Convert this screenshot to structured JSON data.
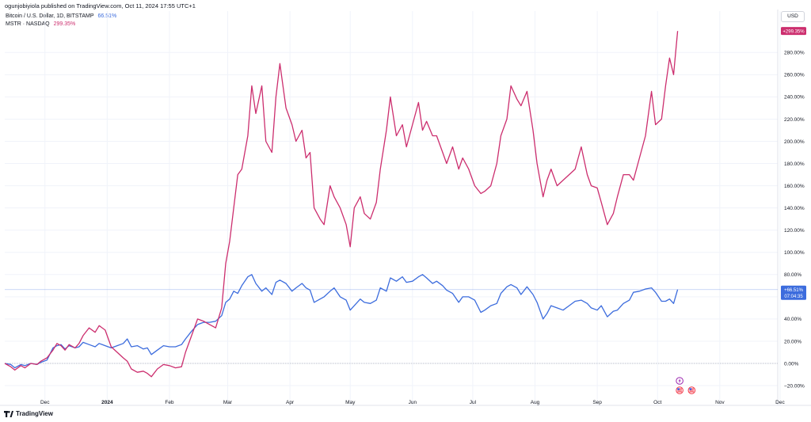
{
  "publisher": "ogunjobiyiola published on TradingView.com, Oct 11, 2024 17:55 UTC+1",
  "currency": "USD",
  "brand": "TradingView",
  "icons": {
    "event": "lightning-icon",
    "flag": "us-flag-icon",
    "logo": "tradingview-logo-icon"
  },
  "colors": {
    "btc": "#3c6cdd",
    "mstr": "#cc2e6e",
    "zero_line": "#b2b5be"
  },
  "chart_data": {
    "type": "line",
    "y_unit": "%",
    "ylim": [
      -28,
      315
    ],
    "y_ticks": [
      -20,
      0,
      20,
      40,
      60,
      80,
      100,
      120,
      140,
      160,
      180,
      200,
      220,
      240,
      260,
      280
    ],
    "y_tick_labels": [
      "−20.00%",
      "0.00%",
      "20.00%",
      "40.00%",
      "60.00%",
      "80.00%",
      "100.00%",
      "120.00%",
      "140.00%",
      "160.00%",
      "180.00%",
      "200.00%",
      "220.00%",
      "240.00%",
      "260.00%",
      "280.00%"
    ],
    "x_ticks": [
      {
        "label": "Dec",
        "date": "2023-12-01"
      },
      {
        "label": "2024",
        "date": "2024-01-01"
      },
      {
        "label": "Feb",
        "date": "2024-02-01"
      },
      {
        "label": "Mar",
        "date": "2024-03-01"
      },
      {
        "label": "Apr",
        "date": "2024-04-01"
      },
      {
        "label": "May",
        "date": "2024-05-01"
      },
      {
        "label": "Jun",
        "date": "2024-06-01"
      },
      {
        "label": "Jul",
        "date": "2024-07-01"
      },
      {
        "label": "Aug",
        "date": "2024-08-01"
      },
      {
        "label": "Sep",
        "date": "2024-09-01"
      },
      {
        "label": "Oct",
        "date": "2024-10-01"
      },
      {
        "label": "Nov",
        "date": "2024-11-01"
      },
      {
        "label": "Dec",
        "date": "2024-12-01"
      }
    ],
    "x_range": [
      "2023-11-11",
      "2024-12-03"
    ],
    "events": {
      "lightning": "2024-10-12",
      "flags": [
        "2024-10-12",
        "2024-10-18"
      ]
    },
    "series": [
      {
        "name": "Bitcoin / U.S. Dollar, 1D, BITSTAMP",
        "legend_value": "66.51%",
        "last_label": "+66.51%",
        "countdown": "07:04:35",
        "color": "#3c6cdd",
        "points": [
          [
            "2023-11-11",
            0
          ],
          [
            "2023-11-14",
            -1
          ],
          [
            "2023-11-16",
            -4
          ],
          [
            "2023-11-19",
            -1
          ],
          [
            "2023-11-21",
            -2
          ],
          [
            "2023-11-24",
            0
          ],
          [
            "2023-11-27",
            -1
          ],
          [
            "2023-11-29",
            1
          ],
          [
            "2023-12-02",
            3
          ],
          [
            "2023-12-05",
            14
          ],
          [
            "2023-12-07",
            16
          ],
          [
            "2023-12-09",
            17
          ],
          [
            "2023-12-11",
            13
          ],
          [
            "2023-12-13",
            16
          ],
          [
            "2023-12-16",
            14
          ],
          [
            "2023-12-18",
            15
          ],
          [
            "2023-12-20",
            19
          ],
          [
            "2023-12-23",
            17
          ],
          [
            "2023-12-26",
            15
          ],
          [
            "2023-12-28",
            18
          ],
          [
            "2023-12-31",
            16
          ],
          [
            "2024-01-03",
            14
          ],
          [
            "2024-01-06",
            16
          ],
          [
            "2024-01-09",
            18
          ],
          [
            "2024-01-11",
            22
          ],
          [
            "2024-01-13",
            15
          ],
          [
            "2024-01-16",
            16
          ],
          [
            "2024-01-19",
            13
          ],
          [
            "2024-01-21",
            14
          ],
          [
            "2024-01-23",
            8
          ],
          [
            "2024-01-26",
            12
          ],
          [
            "2024-01-29",
            16
          ],
          [
            "2024-02-01",
            15
          ],
          [
            "2024-02-04",
            15
          ],
          [
            "2024-02-07",
            17
          ],
          [
            "2024-02-09",
            22
          ],
          [
            "2024-02-12",
            29
          ],
          [
            "2024-02-15",
            35
          ],
          [
            "2024-02-18",
            37
          ],
          [
            "2024-02-21",
            37
          ],
          [
            "2024-02-24",
            38
          ],
          [
            "2024-02-27",
            43
          ],
          [
            "2024-02-29",
            55
          ],
          [
            "2024-03-02",
            58
          ],
          [
            "2024-03-04",
            65
          ],
          [
            "2024-03-06",
            63
          ],
          [
            "2024-03-08",
            70
          ],
          [
            "2024-03-11",
            78
          ],
          [
            "2024-03-13",
            80
          ],
          [
            "2024-03-15",
            72
          ],
          [
            "2024-03-18",
            65
          ],
          [
            "2024-03-20",
            68
          ],
          [
            "2024-03-23",
            62
          ],
          [
            "2024-03-25",
            73
          ],
          [
            "2024-03-27",
            75
          ],
          [
            "2024-03-30",
            72
          ],
          [
            "2024-04-02",
            65
          ],
          [
            "2024-04-04",
            68
          ],
          [
            "2024-04-07",
            72
          ],
          [
            "2024-04-09",
            68
          ],
          [
            "2024-04-11",
            66
          ],
          [
            "2024-04-13",
            55
          ],
          [
            "2024-04-16",
            58
          ],
          [
            "2024-04-18",
            60
          ],
          [
            "2024-04-21",
            65
          ],
          [
            "2024-04-23",
            68
          ],
          [
            "2024-04-26",
            60
          ],
          [
            "2024-04-29",
            57
          ],
          [
            "2024-05-01",
            48
          ],
          [
            "2024-05-03",
            52
          ],
          [
            "2024-05-06",
            58
          ],
          [
            "2024-05-08",
            55
          ],
          [
            "2024-05-11",
            54
          ],
          [
            "2024-05-14",
            57
          ],
          [
            "2024-05-16",
            68
          ],
          [
            "2024-05-19",
            65
          ],
          [
            "2024-05-21",
            77
          ],
          [
            "2024-05-24",
            74
          ],
          [
            "2024-05-27",
            78
          ],
          [
            "2024-05-29",
            73
          ],
          [
            "2024-06-01",
            74
          ],
          [
            "2024-06-04",
            78
          ],
          [
            "2024-06-06",
            80
          ],
          [
            "2024-06-08",
            77
          ],
          [
            "2024-06-11",
            72
          ],
          [
            "2024-06-13",
            74
          ],
          [
            "2024-06-16",
            70
          ],
          [
            "2024-06-18",
            66
          ],
          [
            "2024-06-21",
            63
          ],
          [
            "2024-06-24",
            55
          ],
          [
            "2024-06-26",
            60
          ],
          [
            "2024-06-29",
            60
          ],
          [
            "2024-07-02",
            57
          ],
          [
            "2024-07-05",
            46
          ],
          [
            "2024-07-07",
            48
          ],
          [
            "2024-07-10",
            52
          ],
          [
            "2024-07-13",
            54
          ],
          [
            "2024-07-15",
            63
          ],
          [
            "2024-07-18",
            69
          ],
          [
            "2024-07-20",
            71
          ],
          [
            "2024-07-23",
            68
          ],
          [
            "2024-07-25",
            62
          ],
          [
            "2024-07-28",
            69
          ],
          [
            "2024-07-31",
            62
          ],
          [
            "2024-08-02",
            55
          ],
          [
            "2024-08-05",
            40
          ],
          [
            "2024-08-07",
            45
          ],
          [
            "2024-08-09",
            52
          ],
          [
            "2024-08-12",
            50
          ],
          [
            "2024-08-15",
            48
          ],
          [
            "2024-08-18",
            52
          ],
          [
            "2024-08-21",
            56
          ],
          [
            "2024-08-24",
            57
          ],
          [
            "2024-08-27",
            54
          ],
          [
            "2024-08-29",
            50
          ],
          [
            "2024-09-01",
            48
          ],
          [
            "2024-09-03",
            52
          ],
          [
            "2024-09-06",
            42
          ],
          [
            "2024-09-09",
            47
          ],
          [
            "2024-09-11",
            48
          ],
          [
            "2024-09-14",
            54
          ],
          [
            "2024-09-17",
            57
          ],
          [
            "2024-09-19",
            64
          ],
          [
            "2024-09-22",
            65
          ],
          [
            "2024-09-25",
            67
          ],
          [
            "2024-09-28",
            68
          ],
          [
            "2024-09-30",
            64
          ],
          [
            "2024-10-03",
            56
          ],
          [
            "2024-10-05",
            56
          ],
          [
            "2024-10-07",
            58
          ],
          [
            "2024-10-09",
            54
          ],
          [
            "2024-10-11",
            66.51
          ]
        ]
      },
      {
        "name": "MSTR · NASDAQ",
        "legend_value": "299.35%",
        "last_label": "+299.35%",
        "color": "#cc2e6e",
        "points": [
          [
            "2023-11-11",
            0
          ],
          [
            "2023-11-14",
            -3
          ],
          [
            "2023-11-16",
            -6
          ],
          [
            "2023-11-19",
            -2
          ],
          [
            "2023-11-21",
            -4
          ],
          [
            "2023-11-24",
            0
          ],
          [
            "2023-11-27",
            -1
          ],
          [
            "2023-11-29",
            2
          ],
          [
            "2023-12-02",
            5
          ],
          [
            "2023-12-05",
            12
          ],
          [
            "2023-12-07",
            18
          ],
          [
            "2023-12-09",
            16
          ],
          [
            "2023-12-11",
            12
          ],
          [
            "2023-12-13",
            17
          ],
          [
            "2023-12-16",
            14
          ],
          [
            "2023-12-18",
            18
          ],
          [
            "2023-12-20",
            25
          ],
          [
            "2023-12-23",
            32
          ],
          [
            "2023-12-26",
            28
          ],
          [
            "2023-12-28",
            34
          ],
          [
            "2023-12-31",
            30
          ],
          [
            "2024-01-03",
            15
          ],
          [
            "2024-01-06",
            10
          ],
          [
            "2024-01-09",
            5
          ],
          [
            "2024-01-11",
            2
          ],
          [
            "2024-01-13",
            -5
          ],
          [
            "2024-01-16",
            -8
          ],
          [
            "2024-01-19",
            -7
          ],
          [
            "2024-01-21",
            -9
          ],
          [
            "2024-01-23",
            -12
          ],
          [
            "2024-01-26",
            -5
          ],
          [
            "2024-01-29",
            -1
          ],
          [
            "2024-02-01",
            -2
          ],
          [
            "2024-02-04",
            -4
          ],
          [
            "2024-02-07",
            -3
          ],
          [
            "2024-02-09",
            10
          ],
          [
            "2024-02-12",
            25
          ],
          [
            "2024-02-15",
            40
          ],
          [
            "2024-02-18",
            38
          ],
          [
            "2024-02-21",
            35
          ],
          [
            "2024-02-24",
            32
          ],
          [
            "2024-02-27",
            50
          ],
          [
            "2024-02-29",
            90
          ],
          [
            "2024-03-02",
            110
          ],
          [
            "2024-03-04",
            140
          ],
          [
            "2024-03-06",
            170
          ],
          [
            "2024-03-08",
            175
          ],
          [
            "2024-03-11",
            205
          ],
          [
            "2024-03-13",
            250
          ],
          [
            "2024-03-15",
            225
          ],
          [
            "2024-03-18",
            250
          ],
          [
            "2024-03-20",
            200
          ],
          [
            "2024-03-23",
            190
          ],
          [
            "2024-03-25",
            240
          ],
          [
            "2024-03-27",
            270
          ],
          [
            "2024-03-30",
            230
          ],
          [
            "2024-04-02",
            215
          ],
          [
            "2024-04-04",
            200
          ],
          [
            "2024-04-07",
            210
          ],
          [
            "2024-04-09",
            185
          ],
          [
            "2024-04-11",
            190
          ],
          [
            "2024-04-13",
            140
          ],
          [
            "2024-04-16",
            130
          ],
          [
            "2024-04-18",
            125
          ],
          [
            "2024-04-21",
            160
          ],
          [
            "2024-04-23",
            150
          ],
          [
            "2024-04-26",
            140
          ],
          [
            "2024-04-29",
            125
          ],
          [
            "2024-05-01",
            105
          ],
          [
            "2024-05-03",
            140
          ],
          [
            "2024-05-06",
            150
          ],
          [
            "2024-05-08",
            135
          ],
          [
            "2024-05-11",
            130
          ],
          [
            "2024-05-14",
            145
          ],
          [
            "2024-05-16",
            175
          ],
          [
            "2024-05-19",
            210
          ],
          [
            "2024-05-21",
            240
          ],
          [
            "2024-05-24",
            205
          ],
          [
            "2024-05-27",
            215
          ],
          [
            "2024-05-29",
            195
          ],
          [
            "2024-06-01",
            215
          ],
          [
            "2024-06-04",
            235
          ],
          [
            "2024-06-06",
            210
          ],
          [
            "2024-06-08",
            218
          ],
          [
            "2024-06-11",
            205
          ],
          [
            "2024-06-13",
            205
          ],
          [
            "2024-06-16",
            190
          ],
          [
            "2024-06-18",
            180
          ],
          [
            "2024-06-21",
            195
          ],
          [
            "2024-06-24",
            175
          ],
          [
            "2024-06-26",
            185
          ],
          [
            "2024-06-29",
            175
          ],
          [
            "2024-07-02",
            160
          ],
          [
            "2024-07-05",
            153
          ],
          [
            "2024-07-07",
            155
          ],
          [
            "2024-07-10",
            160
          ],
          [
            "2024-07-13",
            180
          ],
          [
            "2024-07-15",
            205
          ],
          [
            "2024-07-18",
            220
          ],
          [
            "2024-07-20",
            250
          ],
          [
            "2024-07-23",
            238
          ],
          [
            "2024-07-25",
            232
          ],
          [
            "2024-07-28",
            245
          ],
          [
            "2024-07-31",
            210
          ],
          [
            "2024-08-02",
            180
          ],
          [
            "2024-08-05",
            150
          ],
          [
            "2024-08-07",
            165
          ],
          [
            "2024-08-09",
            175
          ],
          [
            "2024-08-12",
            160
          ],
          [
            "2024-08-15",
            165
          ],
          [
            "2024-08-18",
            170
          ],
          [
            "2024-08-21",
            175
          ],
          [
            "2024-08-24",
            195
          ],
          [
            "2024-08-27",
            170
          ],
          [
            "2024-08-29",
            160
          ],
          [
            "2024-09-01",
            158
          ],
          [
            "2024-09-03",
            145
          ],
          [
            "2024-09-06",
            125
          ],
          [
            "2024-09-09",
            135
          ],
          [
            "2024-09-11",
            150
          ],
          [
            "2024-09-14",
            170
          ],
          [
            "2024-09-17",
            170
          ],
          [
            "2024-09-19",
            165
          ],
          [
            "2024-09-22",
            185
          ],
          [
            "2024-09-25",
            205
          ],
          [
            "2024-09-28",
            245
          ],
          [
            "2024-09-30",
            215
          ],
          [
            "2024-10-03",
            220
          ],
          [
            "2024-10-05",
            250
          ],
          [
            "2024-10-07",
            275
          ],
          [
            "2024-10-09",
            260
          ],
          [
            "2024-10-11",
            299.35
          ]
        ]
      }
    ]
  }
}
